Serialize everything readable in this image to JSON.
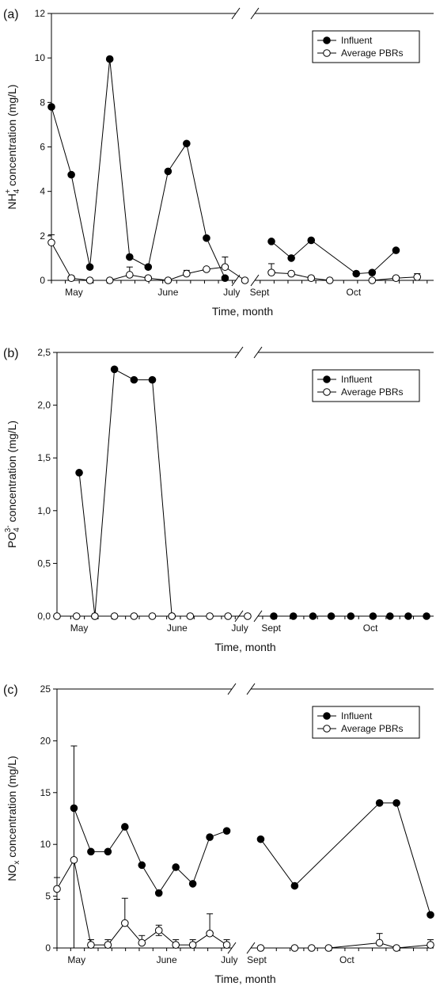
{
  "chart_data": [
    {
      "type": "line",
      "panel_label": "(a)",
      "ylabel": "NH4+ concentration (mg/L)",
      "ylabel_parts": {
        "base": "NH",
        "sub": "4",
        "sup": "+",
        "rest": " concentration (mg/L)"
      },
      "xlabel": "Time, month",
      "ylim": [
        0,
        12
      ],
      "yticks": [
        "0",
        "2",
        "4",
        "6",
        "8",
        "10",
        "12"
      ],
      "yticks_values": [
        0,
        2,
        4,
        6,
        8,
        10,
        12
      ],
      "month_labels": [
        {
          "label": "May",
          "x": 1.7
        },
        {
          "label": "June",
          "x": 8.8
        },
        {
          "label": "July",
          "x": 13.6
        },
        {
          "label": "Sept",
          "x": 15.7
        },
        {
          "label": "Oct",
          "x": 22.8
        }
      ],
      "axis_break": true,
      "legend": {
        "placement": "top-right",
        "entries": [
          "Influent",
          "Average PBRs"
        ]
      },
      "series": [
        {
          "name": "Influent",
          "marker": "filled",
          "segments": [
            [
              [
                0,
                7.8
              ],
              [
                1.5,
                4.75
              ],
              [
                2.9,
                0.6
              ],
              [
                4.4,
                9.95
              ],
              [
                5.9,
                1.05
              ],
              [
                7.3,
                0.6
              ],
              [
                8.8,
                4.9
              ],
              [
                10.2,
                6.15
              ],
              [
                11.7,
                1.9
              ],
              [
                13.1,
                0.1
              ]
            ],
            [
              [
                16.6,
                1.75
              ],
              [
                18.1,
                1.0
              ],
              [
                19.6,
                1.8
              ],
              [
                23.0,
                0.3
              ],
              [
                24.2,
                0.35
              ],
              [
                26.0,
                1.35
              ]
            ]
          ]
        },
        {
          "name": "Average PBRs",
          "marker": "open",
          "segments": [
            [
              [
                0,
                1.7
              ],
              [
                1.5,
                0.1
              ],
              [
                2.9,
                0.0
              ],
              [
                4.4,
                0.0
              ],
              [
                5.9,
                0.25
              ],
              [
                7.3,
                0.1
              ],
              [
                8.8,
                0.0
              ],
              [
                10.2,
                0.3
              ],
              [
                11.7,
                0.5
              ],
              [
                13.1,
                0.6
              ],
              [
                14.6,
                0.0
              ]
            ],
            [
              [
                16.6,
                0.35
              ],
              [
                18.1,
                0.3
              ],
              [
                19.6,
                0.1
              ],
              [
                21.0,
                0.0
              ],
              [
                24.2,
                0.0
              ],
              [
                26.0,
                0.1
              ],
              [
                27.6,
                0.15
              ]
            ]
          ],
          "errors": [
            [
              0,
              1.7,
              2.05
            ],
            [
              1.5,
              0.1,
              0.2
            ],
            [
              5.9,
              0.25,
              0.6
            ],
            [
              10.2,
              0.3,
              0.45
            ],
            [
              13.1,
              0.6,
              1.05
            ],
            [
              16.6,
              0.35,
              0.75
            ],
            [
              19.6,
              0.1,
              0.18
            ],
            [
              26.0,
              0.1,
              0.15
            ],
            [
              27.6,
              0.15,
              0.3
            ]
          ]
        }
      ]
    },
    {
      "type": "line",
      "panel_label": "(b)",
      "ylabel": "PO43- concentration (mg/L)",
      "ylabel_parts": {
        "base": "PO",
        "sub": "4",
        "sup": "3-",
        "rest": " concentration (mg/L)"
      },
      "xlabel": "Time, month",
      "ylim": [
        0,
        2.5
      ],
      "yticks": [
        "0,0",
        "0,5",
        "1,0",
        "1,5",
        "2,0",
        "2,5"
      ],
      "yticks_values": [
        0,
        0.5,
        1.0,
        1.5,
        2.0,
        2.5
      ],
      "month_labels": [
        {
          "label": "May",
          "x": 1.7
        },
        {
          "label": "June",
          "x": 9.2
        },
        {
          "label": "July",
          "x": 14.0
        },
        {
          "label": "Sept",
          "x": 16.4
        },
        {
          "label": "Oct",
          "x": 24.0
        }
      ],
      "axis_break": true,
      "legend": {
        "placement": "top-right",
        "entries": [
          "Influent",
          "Average PBRs"
        ]
      },
      "series": [
        {
          "name": "Influent",
          "marker": "filled",
          "segments": [
            [
              [
                1.7,
                1.36
              ],
              [
                2.9,
                0.0
              ],
              [
                4.4,
                2.34
              ],
              [
                5.9,
                2.24
              ],
              [
                7.3,
                2.24
              ],
              [
                8.8,
                0.0
              ]
            ],
            [
              [
                16.6,
                0.0
              ],
              [
                18.1,
                0.0
              ],
              [
                19.6,
                0.0
              ],
              [
                21.0,
                0.0
              ],
              [
                22.5,
                0.0
              ],
              [
                24.2,
                0.0
              ],
              [
                25.5,
                0.0
              ],
              [
                26.9,
                0.0
              ],
              [
                28.3,
                0.0
              ]
            ]
          ]
        },
        {
          "name": "Average PBRs",
          "marker": "open",
          "segments": [
            [
              [
                0,
                0.0
              ],
              [
                1.5,
                0.0
              ],
              [
                2.9,
                0.0
              ],
              [
                4.4,
                0.0
              ],
              [
                5.9,
                0.0
              ],
              [
                7.3,
                0.0
              ],
              [
                8.8,
                0.0
              ],
              [
                10.2,
                0.0
              ],
              [
                11.7,
                0.0
              ],
              [
                13.1,
                0.0
              ],
              [
                14.6,
                0.0
              ]
            ]
          ],
          "errors": []
        }
      ]
    },
    {
      "type": "line",
      "panel_label": "(c)",
      "ylabel": "NOx concentration (mg/L)",
      "ylabel_parts": {
        "base": "NO",
        "sub": "x",
        "sup": "",
        "rest": " concentration (mg/L)"
      },
      "xlabel": "Time, month",
      "ylim": [
        0,
        25
      ],
      "yticks": [
        "0",
        "5",
        "10",
        "15",
        "20",
        "25"
      ],
      "yticks_values": [
        0,
        5,
        10,
        15,
        20,
        25
      ],
      "month_labels": [
        {
          "label": "May",
          "x": 1.5
        },
        {
          "label": "June",
          "x": 8.4
        },
        {
          "label": "July",
          "x": 13.2
        },
        {
          "label": "Sept",
          "x": 15.3
        },
        {
          "label": "Oct",
          "x": 22.2
        }
      ],
      "axis_break": true,
      "legend": {
        "placement": "top-right",
        "entries": [
          "Influent",
          "Average PBRs"
        ]
      },
      "series": [
        {
          "name": "Influent",
          "marker": "filled",
          "segments": [
            [
              [
                1.3,
                13.5
              ],
              [
                2.6,
                9.3
              ],
              [
                3.9,
                9.3
              ],
              [
                5.2,
                11.7
              ],
              [
                6.5,
                8.0
              ],
              [
                7.8,
                5.3
              ],
              [
                9.1,
                7.8
              ],
              [
                10.4,
                6.2
              ],
              [
                11.7,
                10.7
              ],
              [
                13.0,
                11.3
              ]
            ],
            [
              [
                15.6,
                10.5
              ],
              [
                18.2,
                6.0
              ],
              [
                24.7,
                14.0
              ],
              [
                26.0,
                14.0
              ],
              [
                28.6,
                3.2
              ]
            ]
          ]
        },
        {
          "name": "Average PBRs",
          "marker": "open",
          "segments": [
            [
              [
                0,
                5.7
              ],
              [
                1.3,
                8.5
              ],
              [
                2.6,
                0.3
              ],
              [
                3.9,
                0.3
              ],
              [
                5.2,
                2.4
              ],
              [
                6.5,
                0.5
              ],
              [
                7.8,
                1.7
              ],
              [
                9.1,
                0.3
              ],
              [
                10.4,
                0.3
              ],
              [
                11.7,
                1.4
              ],
              [
                13.0,
                0.3
              ]
            ],
            [
              [
                15.6,
                0.0
              ],
              [
                18.2,
                0.0
              ],
              [
                19.5,
                0.0
              ],
              [
                20.8,
                0.0
              ],
              [
                24.7,
                0.5
              ],
              [
                26.0,
                0.0
              ],
              [
                28.6,
                0.3
              ]
            ]
          ],
          "errors": [
            [
              0,
              5.7,
              6.8,
              4.7
            ],
            [
              1.3,
              8.5,
              19.5,
              0.0
            ],
            [
              2.6,
              0.3,
              0.8
            ],
            [
              3.9,
              0.3,
              0.8
            ],
            [
              5.2,
              2.4,
              4.8
            ],
            [
              6.5,
              0.5,
              1.2
            ],
            [
              7.8,
              1.7,
              2.2,
              1.2
            ],
            [
              9.1,
              0.3,
              0.8
            ],
            [
              10.4,
              0.3,
              0.8
            ],
            [
              11.7,
              1.4,
              3.3
            ],
            [
              13.0,
              0.3,
              0.8
            ],
            [
              24.7,
              0.5,
              1.4
            ],
            [
              28.6,
              0.3,
              0.8
            ]
          ]
        }
      ]
    }
  ]
}
